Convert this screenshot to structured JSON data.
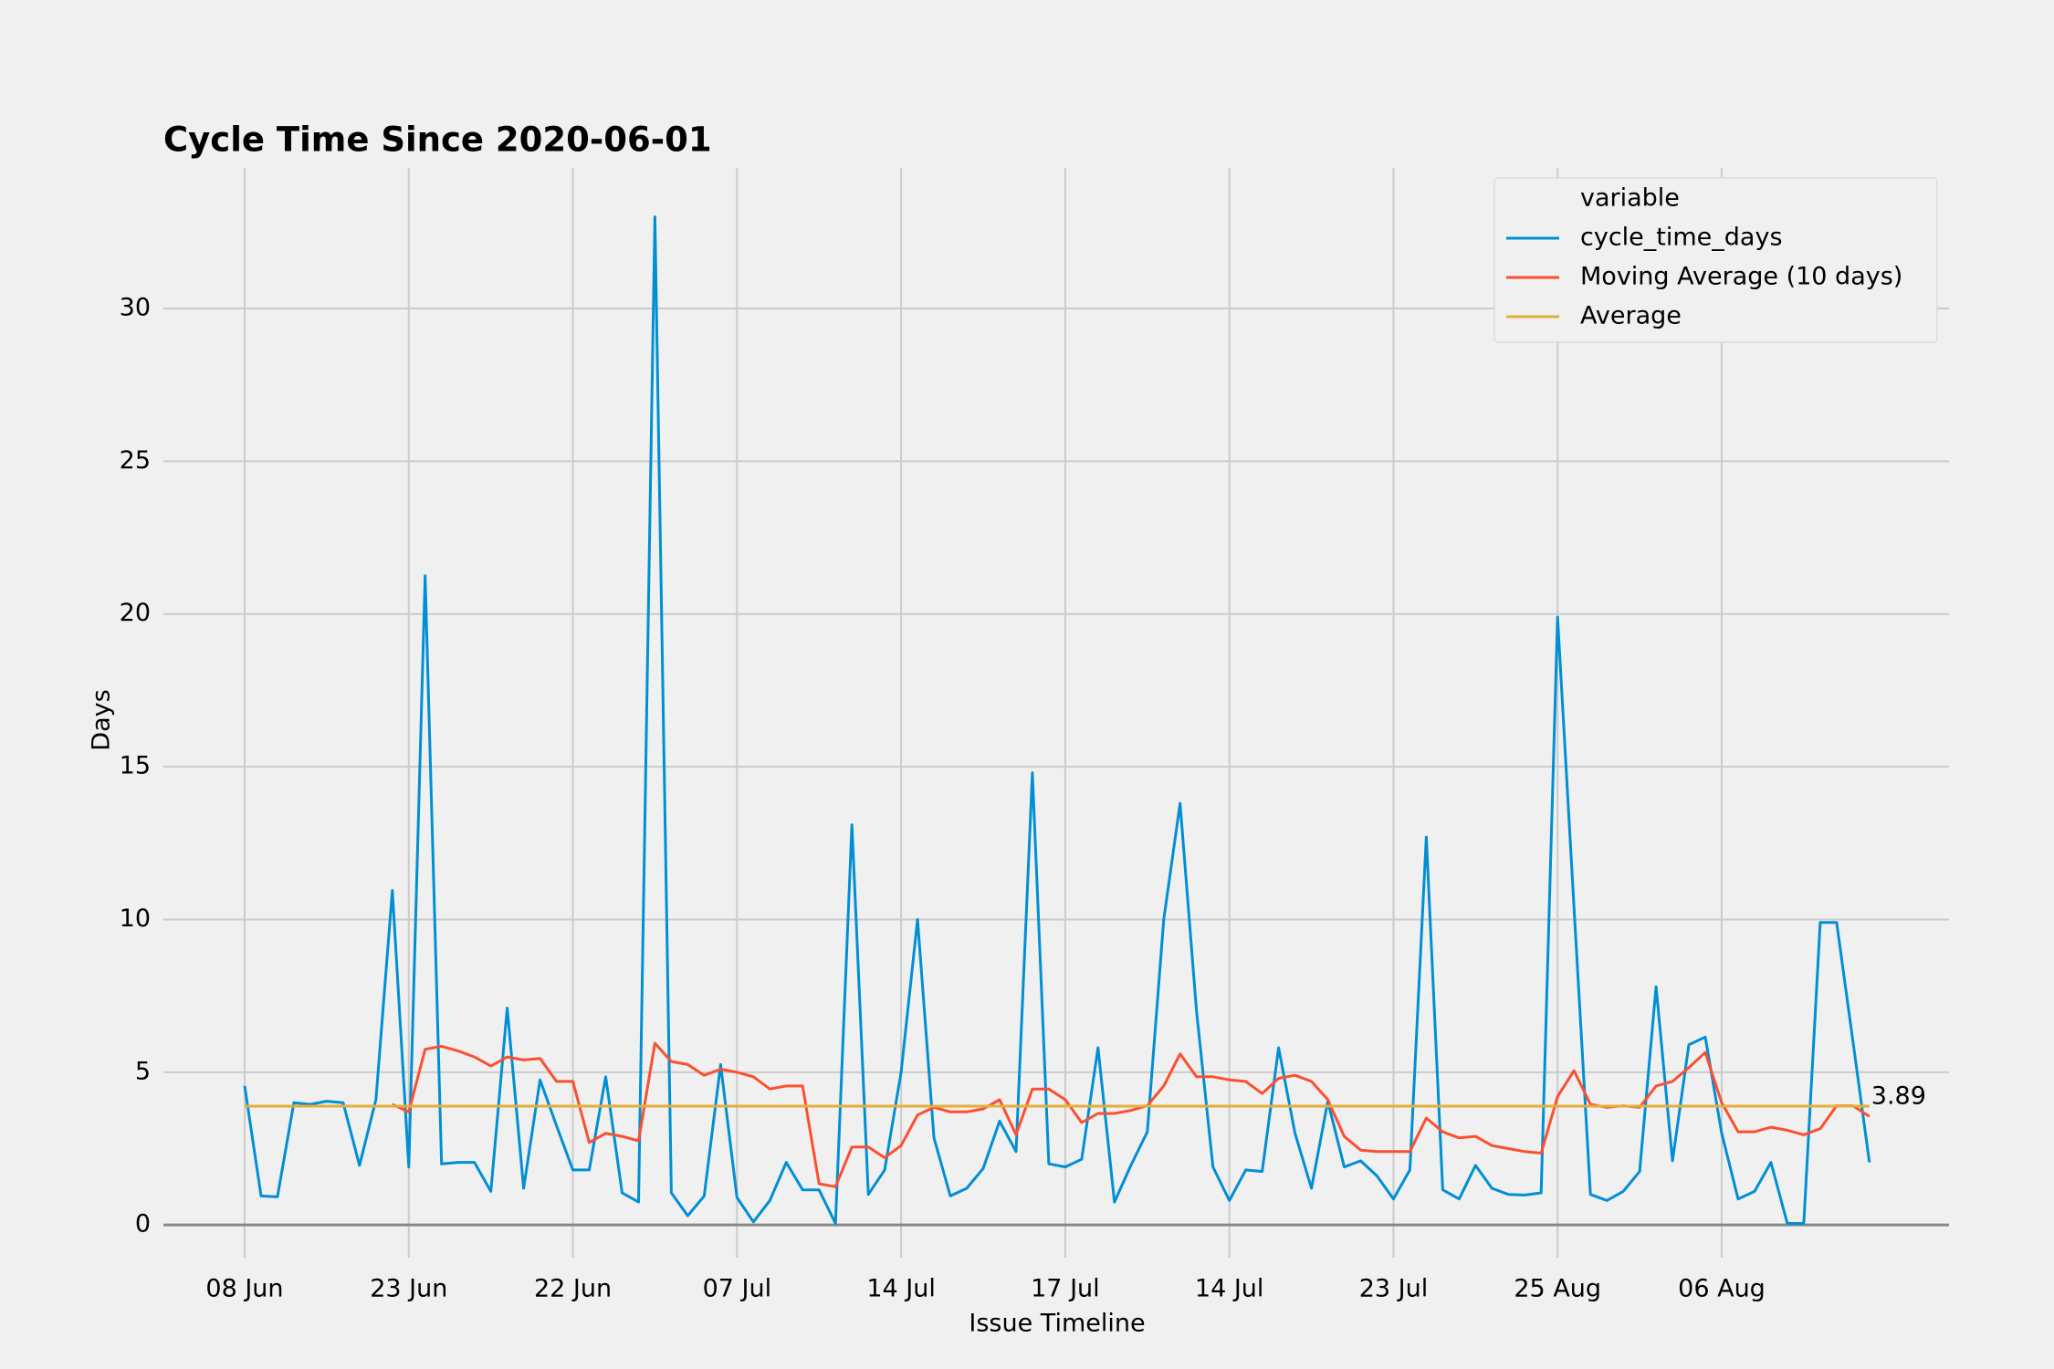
{
  "chart_data": {
    "type": "line",
    "title": "Cycle Time Since 2020-06-01",
    "x_label": "Issue Timeline",
    "y_label": "Days",
    "categories": [
      "08 Jun",
      null,
      null,
      null,
      null,
      null,
      null,
      null,
      null,
      null,
      "23 Jun",
      null,
      null,
      null,
      null,
      null,
      null,
      null,
      null,
      null,
      "22 Jun",
      null,
      null,
      null,
      null,
      null,
      null,
      null,
      null,
      null,
      "07 Jul",
      null,
      null,
      null,
      null,
      null,
      null,
      null,
      null,
      null,
      "14 Jul",
      null,
      null,
      null,
      null,
      null,
      null,
      null,
      null,
      null,
      "17 Jul",
      null,
      null,
      null,
      null,
      null,
      null,
      null,
      null,
      null,
      "14 Jul",
      null,
      null,
      null,
      null,
      null,
      null,
      null,
      null,
      null,
      "23 Jul",
      null,
      null,
      null,
      null,
      null,
      null,
      null,
      null,
      null,
      "25 Aug",
      null,
      null,
      null,
      null,
      null,
      null,
      null,
      null,
      null,
      "06 Aug",
      null,
      null,
      null,
      null,
      null,
      null,
      null,
      null,
      null
    ],
    "series": [
      {
        "name": "cycle_time_days",
        "color": "#008fd5",
        "values": [
          4.55,
          0.95,
          0.92,
          4.0,
          3.95,
          4.05,
          4.0,
          1.95,
          4.1,
          10.95,
          1.9,
          21.25,
          2.0,
          2.05,
          2.05,
          1.1,
          7.1,
          1.2,
          4.75,
          3.25,
          1.8,
          1.8,
          4.85,
          1.05,
          0.75,
          33.0,
          1.05,
          0.3,
          0.95,
          5.25,
          0.9,
          0.1,
          0.8,
          2.05,
          1.15,
          1.15,
          0.05,
          13.1,
          1.0,
          1.8,
          5.0,
          10.0,
          2.85,
          0.95,
          1.2,
          1.85,
          3.4,
          2.4,
          14.8,
          2.0,
          1.9,
          2.15,
          5.8,
          0.75,
          1.95,
          3.05,
          10.0,
          13.8,
          7.0,
          1.9,
          0.8,
          1.8,
          1.75,
          5.8,
          3.0,
          1.2,
          4.05,
          1.9,
          2.1,
          1.6,
          0.85,
          1.8,
          12.7,
          1.15,
          0.85,
          1.95,
          1.2,
          1.0,
          0.98,
          1.05,
          19.9,
          10.4,
          1.0,
          0.8,
          1.1,
          1.75,
          7.8,
          2.1,
          5.9,
          6.15,
          3.0,
          0.85,
          1.1,
          2.05,
          0.05,
          0.05,
          9.9,
          9.9,
          6.0,
          2.05
        ]
      },
      {
        "name": "Moving Average (10 days)",
        "color": "#fc4f30",
        "values": [
          null,
          null,
          null,
          null,
          null,
          null,
          null,
          null,
          null,
          3.95,
          3.7,
          5.75,
          5.85,
          5.7,
          5.5,
          5.2,
          5.5,
          5.4,
          5.45,
          4.7,
          4.7,
          2.7,
          3.0,
          2.9,
          2.75,
          5.95,
          5.35,
          5.25,
          4.9,
          5.1,
          5.0,
          4.85,
          4.45,
          4.55,
          4.55,
          1.35,
          1.25,
          2.55,
          2.55,
          2.2,
          2.6,
          3.6,
          3.85,
          3.7,
          3.7,
          3.8,
          4.1,
          2.95,
          4.45,
          4.45,
          4.1,
          3.35,
          3.65,
          3.65,
          3.75,
          3.9,
          4.55,
          5.6,
          4.85,
          4.85,
          4.75,
          4.7,
          4.3,
          4.8,
          4.9,
          4.7,
          4.1,
          2.9,
          2.45,
          2.4,
          2.4,
          2.4,
          3.5,
          3.05,
          2.85,
          2.9,
          2.6,
          2.5,
          2.4,
          2.35,
          4.2,
          5.05,
          3.95,
          3.85,
          3.9,
          3.85,
          4.55,
          4.7,
          5.15,
          5.65,
          4.0,
          3.05,
          3.05,
          3.2,
          3.1,
          2.95,
          3.15,
          3.9,
          3.9,
          3.55
        ]
      },
      {
        "name": "Average",
        "color": "#e5ae38",
        "values": [
          3.89,
          3.89,
          3.89,
          3.89,
          3.89,
          3.89,
          3.89,
          3.89,
          3.89,
          3.89,
          3.89,
          3.89,
          3.89,
          3.89,
          3.89,
          3.89,
          3.89,
          3.89,
          3.89,
          3.89,
          3.89,
          3.89,
          3.89,
          3.89,
          3.89,
          3.89,
          3.89,
          3.89,
          3.89,
          3.89,
          3.89,
          3.89,
          3.89,
          3.89,
          3.89,
          3.89,
          3.89,
          3.89,
          3.89,
          3.89,
          3.89,
          3.89,
          3.89,
          3.89,
          3.89,
          3.89,
          3.89,
          3.89,
          3.89,
          3.89,
          3.89,
          3.89,
          3.89,
          3.89,
          3.89,
          3.89,
          3.89,
          3.89,
          3.89,
          3.89,
          3.89,
          3.89,
          3.89,
          3.89,
          3.89,
          3.89,
          3.89,
          3.89,
          3.89,
          3.89,
          3.89,
          3.89,
          3.89,
          3.89,
          3.89,
          3.89,
          3.89,
          3.89,
          3.89,
          3.89,
          3.89,
          3.89,
          3.89,
          3.89,
          3.89,
          3.89,
          3.89,
          3.89,
          3.89,
          3.89,
          3.89,
          3.89,
          3.89,
          3.89,
          3.89,
          3.89,
          3.89,
          3.89,
          3.89,
          3.89
        ]
      }
    ],
    "legend_title": "variable",
    "legend": "upper right",
    "ylim": [
      -1.07,
      34.6
    ],
    "yticks": [
      0,
      5,
      10,
      15,
      20,
      25,
      30
    ],
    "grid": true
  }
}
